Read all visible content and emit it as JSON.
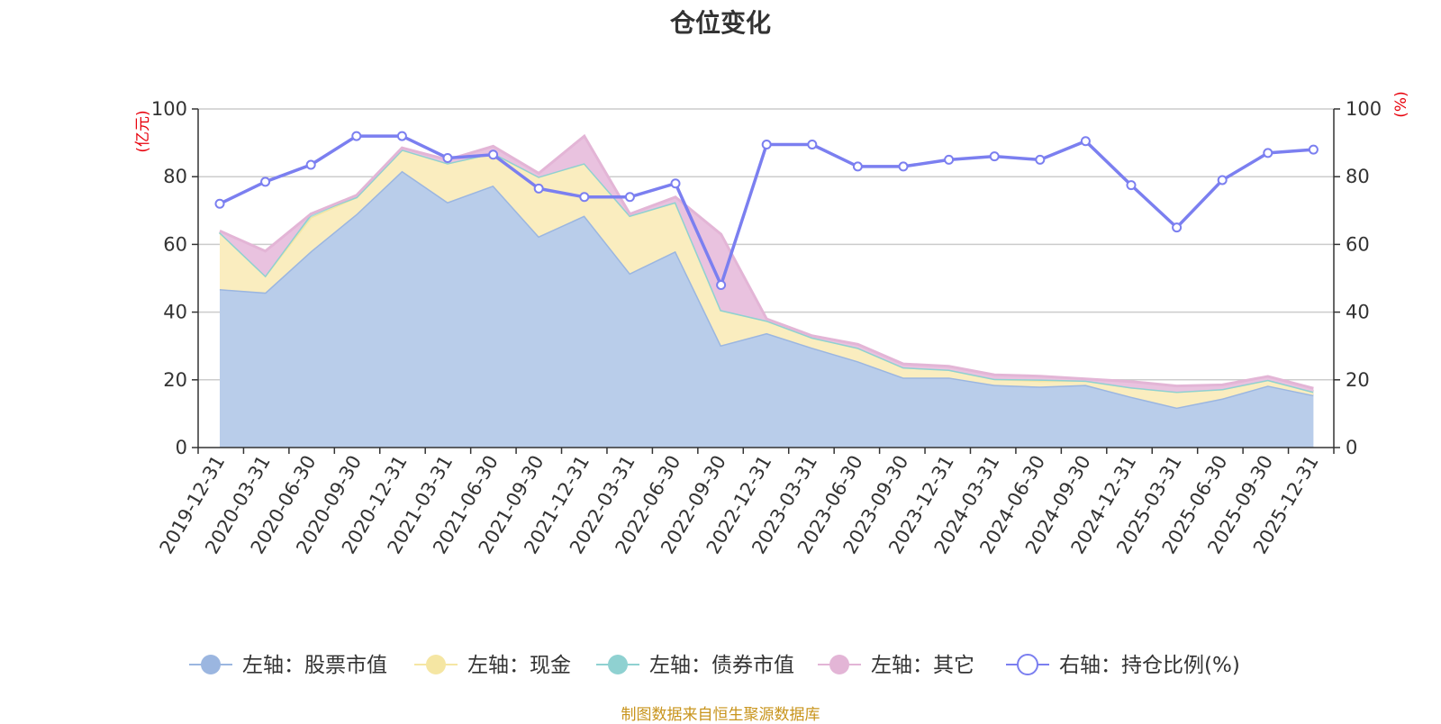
{
  "chart_data": {
    "type": "area",
    "title": "仓位变化",
    "left_axis_unit": "(亿元)",
    "right_axis_unit": "(%)",
    "left_ylim": [
      0,
      100
    ],
    "right_ylim": [
      0,
      100
    ],
    "left_ticks": [
      "0",
      "20",
      "40",
      "60",
      "80",
      "100"
    ],
    "right_ticks": [
      "0",
      "20",
      "40",
      "60",
      "80",
      "100"
    ],
    "grid": true,
    "categories": [
      "2019-12-31",
      "2020-03-31",
      "2020-06-30",
      "2020-09-30",
      "2020-12-31",
      "2021-03-31",
      "2021-06-30",
      "2021-09-30",
      "2021-12-31",
      "2022-03-31",
      "2022-06-30",
      "2022-09-30",
      "2022-12-31",
      "2023-03-31",
      "2023-06-30",
      "2023-09-30",
      "2023-12-31",
      "2024-03-31",
      "2024-06-30",
      "2024-09-30",
      "2024-12-31",
      "2025-03-31",
      "2025-06-30",
      "2025-09-30",
      "2025-12-31"
    ],
    "series": [
      {
        "name": "左轴：股票市值",
        "axis": "left",
        "kind": "area",
        "color": "#9bb6e0",
        "fill": "#b9cdea",
        "values": [
          46.8,
          45.8,
          58,
          69,
          81.7,
          72.5,
          77.4,
          62.4,
          68.5,
          51.5,
          58,
          30.2,
          33.8,
          29.5,
          25.5,
          20.7,
          20.7,
          18.5,
          18,
          18.5,
          15,
          11.8,
          14.5,
          18.3,
          15.5
        ]
      },
      {
        "name": "左轴：现金",
        "axis": "left",
        "kind": "area",
        "color": "#f5e6a3",
        "fill": "#faedbf",
        "values": [
          16.8,
          5,
          10,
          5,
          6.3,
          11.5,
          9.6,
          17.6,
          15.5,
          17,
          14.5,
          10.4,
          3.7,
          3,
          4,
          3,
          2.3,
          1.8,
          1.7,
          1.3,
          2.8,
          4.7,
          2.8,
          1.7,
          1
        ]
      },
      {
        "name": "左轴：债券市值",
        "axis": "left",
        "kind": "area",
        "color": "#8fd1d1",
        "fill": "#a9dcdc",
        "values": [
          0,
          0,
          1,
          0,
          0,
          0,
          0,
          0,
          0,
          0,
          0,
          0,
          0,
          0,
          0,
          0,
          0,
          0,
          0.4,
          0,
          0,
          0,
          0,
          0,
          0
        ]
      },
      {
        "name": "左轴：其它",
        "axis": "left",
        "kind": "area",
        "color": "#e3b5d6",
        "fill": "#e9c2df",
        "values": [
          0.4,
          7.2,
          0,
          0.5,
          0.5,
          1,
          2,
          1,
          8,
          0.5,
          1.5,
          22.4,
          0.5,
          0.5,
          1,
          1,
          1,
          1.2,
          1,
          0.5,
          1.7,
          1.7,
          1.2,
          1,
          1
        ]
      },
      {
        "name": "右轴：持仓比例(%)",
        "axis": "right",
        "kind": "line",
        "color": "#7b7ff0",
        "values": [
          72,
          78.5,
          83.5,
          92,
          92,
          85.5,
          86.5,
          76.5,
          74,
          74,
          78,
          48,
          89.5,
          89.5,
          83,
          83,
          85,
          86,
          85,
          90.5,
          77.5,
          65,
          79,
          87,
          88
        ]
      }
    ]
  },
  "source_note": "制图数据来自恒生聚源数据库"
}
